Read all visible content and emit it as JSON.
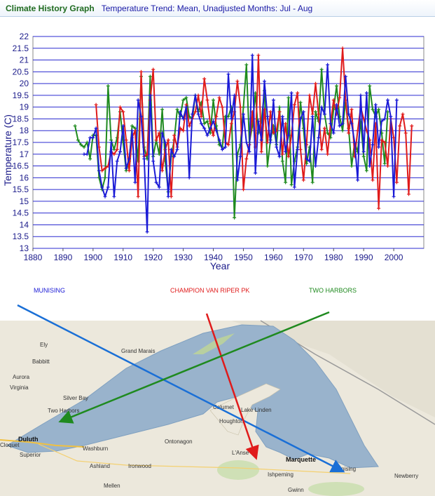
{
  "header": {
    "title": "Climate History Graph",
    "subtitle": "Temperature Trend: Mean, Unadjusted Months: Jul - Aug"
  },
  "chart_data": {
    "type": "line",
    "xlabel": "Year",
    "ylabel": "Temperature (C)",
    "xlim": [
      1880,
      2010
    ],
    "ylim": [
      13,
      22
    ],
    "xticks": [
      1880,
      1890,
      1900,
      1910,
      1920,
      1930,
      1940,
      1950,
      1960,
      1970,
      1980,
      1990,
      2000
    ],
    "yticks": [
      13,
      13.5,
      14,
      14.5,
      15,
      15.5,
      16,
      16.5,
      17,
      17.5,
      18,
      18.5,
      19,
      19.5,
      20,
      20.5,
      21,
      21.5,
      22
    ],
    "grid": "horizontal",
    "series": [
      {
        "name": "MUNISING",
        "color": "#1a1ad6",
        "start_year": 1897,
        "values": [
          17.0,
          17.0,
          17.7,
          17.7,
          18.1,
          16.3,
          15.6,
          15.2,
          15.6,
          17.5,
          15.2,
          16.7,
          17.1,
          18.2,
          16.4,
          16.8,
          18.0,
          15.8,
          19.3,
          18.6,
          16.8,
          13.7,
          19.5,
          16.7,
          15.8,
          15.6,
          17.9,
          17.5,
          15.2,
          17.2,
          16.9,
          17.2,
          18.8,
          18.5,
          19.0,
          16.0,
          18.7,
          19.5,
          18.7,
          18.3,
          18.1,
          17.8,
          18.1,
          18.4,
          18.0,
          17.6,
          17.2,
          17.3,
          20.4,
          18.5,
          19.5,
          15.9,
          16.9,
          18.7,
          17.5,
          17.1,
          21.2,
          16.2,
          18.4,
          17.6,
          20.1,
          18.6,
          17.5,
          19.3,
          17.3,
          16.9,
          18.6,
          17.1,
          17.8,
          19.6,
          15.6,
          17.2,
          18.5,
          18.8,
          16.8,
          16.7,
          18.6,
          16.5,
          17.7,
          19.0,
          18.7,
          20.8,
          18.3,
          17.9,
          19.1,
          18.2,
          18.3,
          20.3,
          18.7,
          18.3,
          17.5,
          15.9,
          19.5,
          17.1,
          19.6,
          16.5,
          17.4,
          19.1,
          17.3,
          18.4,
          18.5,
          19.3,
          18.6,
          15.2,
          19.3
        ]
      },
      {
        "name": "CHAMPION VAN RIPER PK",
        "color": "#e01b1b",
        "start_year": 1901,
        "values": [
          19.1,
          17.3,
          16.3,
          16.4,
          16.5,
          17.1,
          17.0,
          17.2,
          19.0,
          18.8,
          17.6,
          16.3,
          17.7,
          18.0,
          15.2,
          20.5,
          16.9,
          17.0,
          19.3,
          20.6,
          17.6,
          17.9,
          16.3,
          17.2,
          17.6,
          15.2,
          17.8,
          17.3,
          18.1,
          18.0,
          19.1,
          18.2,
          18.5,
          18.8,
          19.5,
          18.6,
          20.2,
          19.3,
          18.3,
          17.8,
          18.6,
          19.4,
          19.0,
          17.5,
          17.4,
          18.3,
          18.8,
          20.1,
          19.0,
          15.5,
          16.8,
          17.4,
          18.8,
          17.3,
          21.2,
          17.1,
          18.9,
          17.5,
          18.8,
          17.9,
          18.0,
          18.8,
          17.0,
          18.3,
          16.9,
          17.8,
          19.1,
          19.6,
          17.2,
          15.9,
          17.4,
          19.5,
          18.7,
          20.0,
          18.7,
          17.2,
          18.1,
          17.0,
          18.3,
          19.3,
          18.7,
          19.4,
          21.5,
          19.3,
          17.9,
          18.9,
          16.9,
          18.0,
          19.0,
          18.5,
          18.0,
          17.6,
          15.9,
          18.3,
          14.7,
          17.6,
          17.5,
          16.5,
          18.5,
          17.7,
          15.8,
          18.2,
          18.7,
          17.9,
          15.3,
          18.2
        ]
      },
      {
        "name": "TWO HARBORS",
        "color": "#1f8a1f",
        "start_year": 1894,
        "values": [
          18.2,
          17.6,
          17.4,
          17.3,
          17.5,
          16.8,
          17.8,
          17.8,
          16.0,
          15.5,
          16.0,
          19.9,
          17.6,
          17.2,
          17.7,
          18.8,
          17.5,
          16.3,
          16.7,
          18.2,
          18.1,
          16.7,
          20.3,
          17.3,
          16.8,
          20.3,
          16.9,
          17.6,
          17.0,
          18.9,
          16.7,
          15.4,
          16.9,
          17.6,
          18.9,
          18.6,
          19.3,
          19.4,
          18.6,
          18.5,
          19.5,
          18.8,
          19.2,
          18.3,
          18.4,
          17.9,
          19.3,
          18.2,
          17.4,
          17.3,
          18.6,
          18.6,
          19.0,
          14.3,
          17.0,
          17.4,
          19.0,
          20.8,
          17.5,
          18.2,
          19.6,
          17.9,
          18.4,
          19.7,
          16.5,
          17.6,
          18.2,
          17.4,
          19.0,
          16.7,
          15.8,
          19.4,
          15.7,
          16.7,
          17.3,
          19.2,
          18.1,
          16.6,
          17.3,
          15.8,
          18.8,
          18.4,
          20.6,
          18.7,
          17.9,
          17.7,
          18.9,
          19.9,
          18.6,
          18.0,
          19.3,
          18.1,
          16.5,
          17.5,
          17.1,
          18.4,
          16.9,
          16.3,
          19.9,
          18.9,
          18.6,
          18.9,
          17.9,
          16.6,
          18.8
        ]
      }
    ]
  },
  "map": {
    "legend": [
      {
        "label": "MUNISING",
        "color": "#1a1ad6"
      },
      {
        "label": "CHAMPION VAN RIPER PK",
        "color": "#e01b1b"
      },
      {
        "label": "TWO HARBORS",
        "color": "#1f8a1f"
      }
    ],
    "cities": [
      "Ely",
      "Babbitt",
      "Aurora",
      "Virginia",
      "Grand Marais",
      "Silver Bay",
      "Two Harbors",
      "Duluth",
      "Superior",
      "Cloquet",
      "Washburn",
      "Ashland",
      "Ironwood",
      "Mellen",
      "Ontonagon",
      "Calumet",
      "Lake Linden",
      "Houghton",
      "L'Anse",
      "Marquette",
      "Ishpeming",
      "Gwinn",
      "Munising",
      "Newberry"
    ]
  }
}
